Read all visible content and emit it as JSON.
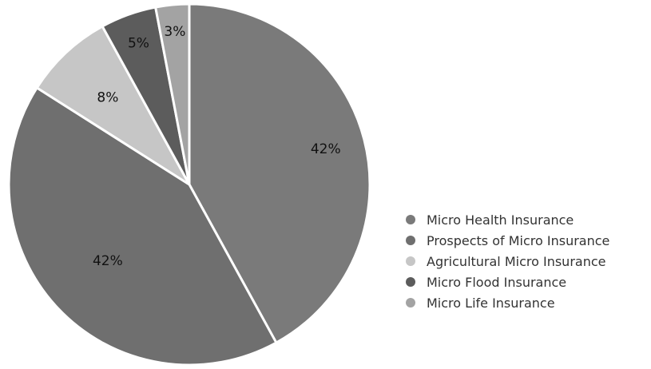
{
  "chart_data": {
    "type": "pie",
    "title": "",
    "legend_position": "right",
    "slices": [
      {
        "name": "Micro Health Insurance",
        "value": 42,
        "label": "42%",
        "color": "#7a7a7a"
      },
      {
        "name": "Prospects of Micro Insurance",
        "value": 42,
        "label": "42%",
        "color": "#6f6f6f"
      },
      {
        "name": "Agricultural Micro Insurance",
        "value": 8,
        "label": "8%",
        "color": "#c6c6c6"
      },
      {
        "name": "Micro Flood Insurance",
        "value": 5,
        "label": "5%",
        "color": "#5c5c5c"
      },
      {
        "name": "Micro Life Insurance",
        "value": 3,
        "label": "3%",
        "color": "#a3a3a3"
      }
    ]
  }
}
